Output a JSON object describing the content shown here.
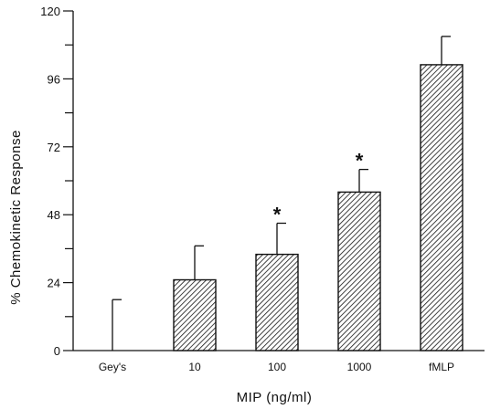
{
  "chart_data": {
    "type": "bar",
    "categories": [
      "Gey's",
      "10",
      "100",
      "1000",
      "fMLP"
    ],
    "values": [
      0,
      25,
      34,
      56,
      101
    ],
    "error_upper": [
      18,
      12,
      11,
      8,
      10
    ],
    "significant": [
      false,
      false,
      true,
      true,
      false
    ],
    "significance_marker": "*",
    "xlabel": "MIP (ng/ml)",
    "ylabel": "% Chemokinetic Response",
    "ylim": [
      0,
      120
    ],
    "yticks": [
      0,
      24,
      48,
      72,
      96,
      120
    ],
    "ytick_labels": [
      "0",
      "24",
      "48",
      "72",
      "96",
      "120"
    ],
    "bar_fill": "hatched",
    "grid": false,
    "legend": "none"
  }
}
